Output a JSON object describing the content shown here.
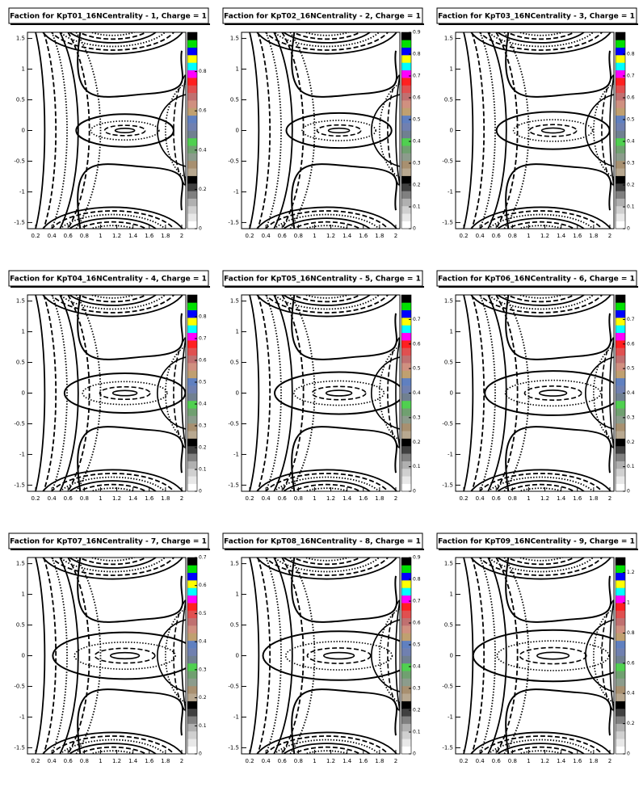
{
  "chart_data": [
    {
      "type": "contour",
      "title": "Faction for KpT01_16NCentrality - 1, Charge =   1",
      "xlim": [
        0.1,
        2.05
      ],
      "ylim": [
        -1.6,
        1.6
      ],
      "xticks": [
        0.2,
        0.4,
        0.6,
        0.8,
        1,
        1.2,
        1.4,
        1.6,
        1.8,
        2
      ],
      "yticks": [
        -1.5,
        -1,
        -0.5,
        0,
        0.5,
        1,
        1.5
      ],
      "zlim": [
        0,
        1.0
      ],
      "zticks": [
        0,
        0.2,
        0.4,
        0.6,
        0.8
      ]
    },
    {
      "type": "contour",
      "title": "Faction for KpT02_16NCentrality - 2, Charge =   1",
      "xlim": [
        0.1,
        2.05
      ],
      "ylim": [
        -1.6,
        1.6
      ],
      "xticks": [
        0.2,
        0.4,
        0.6,
        0.8,
        1,
        1.2,
        1.4,
        1.6,
        1.8,
        2
      ],
      "yticks": [
        -1.5,
        -1,
        -0.5,
        0,
        0.5,
        1,
        1.5
      ],
      "zlim": [
        0,
        0.9
      ],
      "zticks": [
        0,
        0.1,
        0.2,
        0.3,
        0.4,
        0.5,
        0.6,
        0.7,
        0.8,
        0.9
      ]
    },
    {
      "type": "contour",
      "title": "Faction for KpT03_16NCentrality - 3, Charge =   1",
      "xlim": [
        0.1,
        2.05
      ],
      "ylim": [
        -1.6,
        1.6
      ],
      "xticks": [
        0.2,
        0.4,
        0.6,
        0.8,
        1,
        1.2,
        1.4,
        1.6,
        1.8,
        2
      ],
      "yticks": [
        -1.5,
        -1,
        -0.5,
        0,
        0.5,
        1,
        1.5
      ],
      "zlim": [
        0,
        0.9
      ],
      "zticks": [
        0,
        0.1,
        0.2,
        0.3,
        0.4,
        0.5,
        0.6,
        0.7,
        0.8
      ]
    },
    {
      "type": "contour",
      "title": "Faction for KpT04_16NCentrality - 4, Charge =   1",
      "xlim": [
        0.1,
        2.05
      ],
      "ylim": [
        -1.6,
        1.6
      ],
      "xticks": [
        0.2,
        0.4,
        0.6,
        0.8,
        1,
        1.2,
        1.4,
        1.6,
        1.8,
        2
      ],
      "yticks": [
        -1.5,
        -1,
        -0.5,
        0,
        0.5,
        1,
        1.5
      ],
      "zlim": [
        0,
        0.9
      ],
      "zticks": [
        0,
        0.1,
        0.2,
        0.3,
        0.4,
        0.5,
        0.6,
        0.7,
        0.8
      ]
    },
    {
      "type": "contour",
      "title": "Faction for KpT05_16NCentrality - 5, Charge =   1",
      "xlim": [
        0.1,
        2.05
      ],
      "ylim": [
        -1.6,
        1.6
      ],
      "xticks": [
        0.2,
        0.4,
        0.6,
        0.8,
        1,
        1.2,
        1.4,
        1.6,
        1.8,
        2
      ],
      "yticks": [
        -1.5,
        -1,
        -0.5,
        0,
        0.5,
        1,
        1.5
      ],
      "zlim": [
        0,
        0.8
      ],
      "zticks": [
        0,
        0.1,
        0.2,
        0.3,
        0.4,
        0.5,
        0.6,
        0.7
      ]
    },
    {
      "type": "contour",
      "title": "Faction for KpT06_16NCentrality - 6, Charge =   1",
      "xlim": [
        0.1,
        2.05
      ],
      "ylim": [
        -1.6,
        1.6
      ],
      "xticks": [
        0.2,
        0.4,
        0.6,
        0.8,
        1,
        1.2,
        1.4,
        1.6,
        1.8,
        2
      ],
      "yticks": [
        -1.5,
        -1,
        -0.5,
        0,
        0.5,
        1,
        1.5
      ],
      "zlim": [
        0,
        0.8
      ],
      "zticks": [
        0,
        0.1,
        0.2,
        0.3,
        0.4,
        0.5,
        0.6,
        0.7
      ]
    },
    {
      "type": "contour",
      "title": "Faction for KpT07_16NCentrality - 7, Charge =   1",
      "xlim": [
        0.1,
        2.05
      ],
      "ylim": [
        -1.6,
        1.6
      ],
      "xticks": [
        0.2,
        0.4,
        0.6,
        0.8,
        1,
        1.2,
        1.4,
        1.6,
        1.8,
        2
      ],
      "yticks": [
        -1.5,
        -1,
        -0.5,
        0,
        0.5,
        1,
        1.5
      ],
      "zlim": [
        0,
        0.7
      ],
      "zticks": [
        0,
        0.1,
        0.2,
        0.3,
        0.4,
        0.5,
        0.6,
        0.7
      ]
    },
    {
      "type": "contour",
      "title": "Faction for KpT08_16NCentrality - 8, Charge =   1",
      "xlim": [
        0.1,
        2.05
      ],
      "ylim": [
        -1.6,
        1.6
      ],
      "xticks": [
        0.2,
        0.4,
        0.6,
        0.8,
        1,
        1.2,
        1.4,
        1.6,
        1.8,
        2
      ],
      "yticks": [
        -1.5,
        -1,
        -0.5,
        0,
        0.5,
        1,
        1.5
      ],
      "zlim": [
        0,
        0.9
      ],
      "zticks": [
        0,
        0.1,
        0.2,
        0.3,
        0.4,
        0.5,
        0.6,
        0.7,
        0.8,
        0.9
      ]
    },
    {
      "type": "contour",
      "title": "Faction for KpT09_16NCentrality - 9, Charge =   1",
      "xlim": [
        0.1,
        2.05
      ],
      "ylim": [
        -1.6,
        1.6
      ],
      "xticks": [
        0.2,
        0.4,
        0.6,
        0.8,
        1,
        1.2,
        1.4,
        1.6,
        1.8,
        2
      ],
      "yticks": [
        -1.5,
        -1,
        -0.5,
        0,
        0.5,
        1,
        1.5
      ],
      "zlim": [
        0,
        1.3
      ],
      "zticks": [
        0,
        0.2,
        0.4,
        0.6,
        0.8,
        1,
        1.2
      ]
    }
  ]
}
